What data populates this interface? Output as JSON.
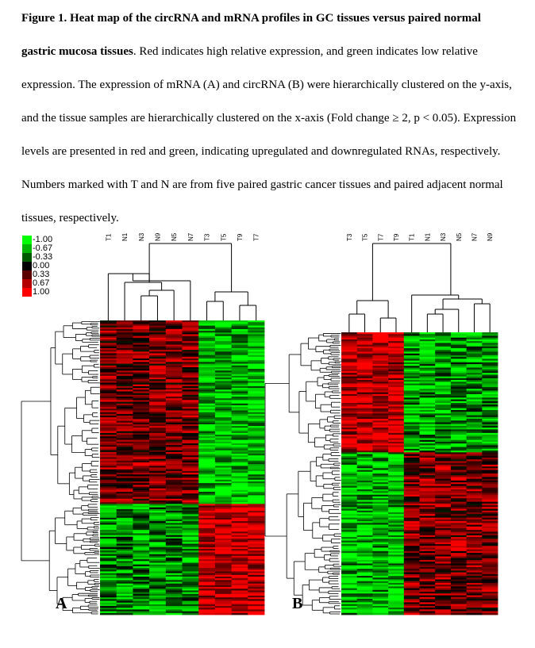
{
  "caption": {
    "title": "Figure 1. Heat map of the circRNA and mRNA profiles in GC tissues versus paired normal gastric mucosa tissues",
    "body": ". Red indicates high relative expression, and green indicates low relative expression. The expression of mRNA (A) and circRNA (B) were hierarchically clustered on the y-axis, and the tissue samples are hierarchically clustered on the x-axis (Fold change ≥ 2, p < 0.05). Expression levels are presented in red and green, indicating upregulated and downregulated RNAs, respectively. Numbers marked with T and N are from five paired gastric cancer tissues and paired adjacent normal tissues, respectively."
  },
  "legend": {
    "items": [
      {
        "label": "-1.00",
        "color": "#00ff00"
      },
      {
        "label": "-0.67",
        "color": "#00b400"
      },
      {
        "label": "-0.33",
        "color": "#005a00"
      },
      {
        "label": "0.00",
        "color": "#000000"
      },
      {
        "label": "0.33",
        "color": "#5a0000"
      },
      {
        "label": "0.67",
        "color": "#b40000"
      },
      {
        "label": "1.00",
        "color": "#ff0000"
      }
    ]
  },
  "panels": {
    "a": {
      "letter": "A",
      "samples": [
        "T1",
        "N1",
        "N3",
        "N9",
        "N5",
        "N7",
        "T3",
        "T5",
        "T9",
        "T7"
      ]
    },
    "b": {
      "letter": "B",
      "samples": [
        "T3",
        "T5",
        "T7",
        "T9",
        "T1",
        "N1",
        "N3",
        "N5",
        "N7",
        "N9"
      ]
    }
  },
  "colors": {
    "high": "#ff0000",
    "low": "#00ff00",
    "mid": "#000000"
  }
}
